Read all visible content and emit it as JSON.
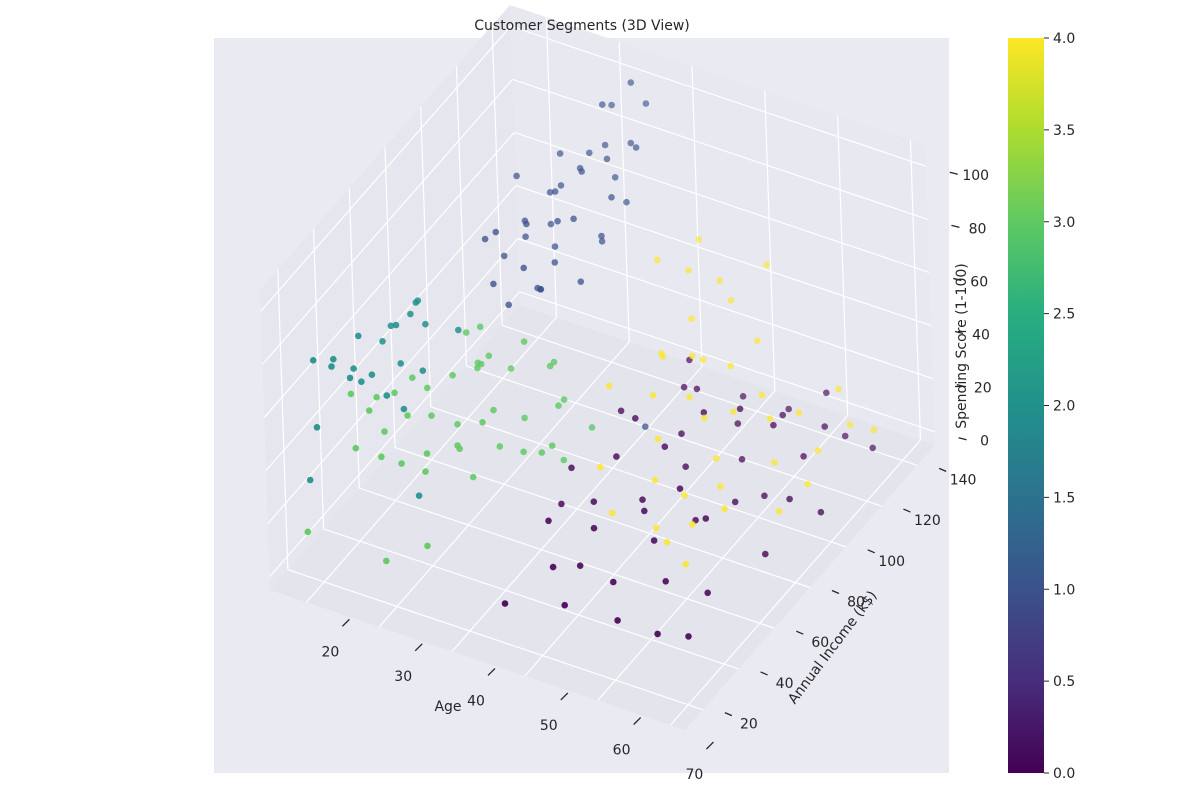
{
  "chart_data": {
    "type": "scatter",
    "projection": "3d",
    "title": "Customer Segments (3D View)",
    "xlabel": "Age",
    "ylabel": "Annual Income (k$)",
    "zlabel": "Spending Score (1-100)",
    "xlim": [
      15,
      72
    ],
    "ylim": [
      10,
      150
    ],
    "zlim": [
      -5,
      108
    ],
    "xticks": [
      20,
      30,
      40,
      50,
      60,
      70
    ],
    "yticks": [
      20,
      40,
      60,
      80,
      100,
      120,
      140
    ],
    "zticks": [
      0,
      20,
      40,
      60,
      80,
      100
    ],
    "grid": true,
    "colorbar": {
      "colormap": "viridis",
      "range": [
        0,
        4
      ],
      "ticks": [
        "0.0",
        "0.5",
        "1.0",
        "1.5",
        "2.0",
        "2.5",
        "3.0",
        "3.5",
        "4.0"
      ],
      "position": "right"
    },
    "series": [
      {
        "cluster": 0,
        "color": "#440154",
        "points": [
          [
            45,
            20,
            10
          ],
          [
            52,
            25,
            12
          ],
          [
            58,
            30,
            8
          ],
          [
            64,
            28,
            10
          ],
          [
            48,
            35,
            15
          ],
          [
            55,
            40,
            12
          ],
          [
            67,
            33,
            8
          ],
          [
            61,
            45,
            14
          ],
          [
            50,
            50,
            20
          ],
          [
            57,
            55,
            18
          ],
          [
            43,
            60,
            15
          ],
          [
            66,
            48,
            12
          ],
          [
            53,
            65,
            22
          ],
          [
            59,
            70,
            16
          ],
          [
            47,
            75,
            25
          ],
          [
            62,
            80,
            18
          ],
          [
            54,
            85,
            20
          ],
          [
            68,
            72,
            10
          ],
          [
            44,
            90,
            28
          ],
          [
            51,
            95,
            22
          ],
          [
            58,
            100,
            15
          ],
          [
            63,
            92,
            12
          ],
          [
            49,
            105,
            30
          ],
          [
            55,
            110,
            18
          ],
          [
            60,
            115,
            22
          ],
          [
            46,
            120,
            26
          ],
          [
            52,
            125,
            14
          ],
          [
            65,
            118,
            20
          ],
          [
            57,
            130,
            10
          ],
          [
            61,
            135,
            16
          ],
          [
            48,
            82,
            35
          ],
          [
            56,
            88,
            40
          ],
          [
            53,
            78,
            32
          ],
          [
            59,
            96,
            38
          ],
          [
            62,
            102,
            30
          ],
          [
            50,
            108,
            28
          ],
          [
            66,
            125,
            12
          ],
          [
            69,
            128,
            8
          ],
          [
            64,
            110,
            14
          ],
          [
            42,
            70,
            20
          ],
          [
            47,
            62,
            18
          ],
          [
            55,
            58,
            25
          ],
          [
            58,
            66,
            30
          ],
          [
            67,
            90,
            16
          ],
          [
            70,
            95,
            10
          ],
          [
            45,
            45,
            22
          ],
          [
            51,
            38,
            16
          ],
          [
            63,
            60,
            28
          ]
        ]
      },
      {
        "cluster": 1,
        "color": "#3b528b",
        "points": [
          [
            32,
            70,
            80
          ],
          [
            35,
            75,
            85
          ],
          [
            30,
            80,
            90
          ],
          [
            38,
            72,
            82
          ],
          [
            29,
            78,
            88
          ],
          [
            33,
            85,
            92
          ],
          [
            36,
            88,
            78
          ],
          [
            31,
            92,
            86
          ],
          [
            37,
            95,
            90
          ],
          [
            34,
            98,
            84
          ],
          [
            28,
            100,
            94
          ],
          [
            39,
            102,
            80
          ],
          [
            32,
            105,
            88
          ],
          [
            35,
            108,
            96
          ],
          [
            30,
            110,
            82
          ],
          [
            38,
            112,
            86
          ],
          [
            33,
            115,
            90
          ],
          [
            36,
            118,
            94
          ],
          [
            29,
            120,
            88
          ],
          [
            34,
            125,
            92
          ],
          [
            31,
            128,
            84
          ],
          [
            37,
            130,
            90
          ],
          [
            35,
            135,
            86
          ],
          [
            32,
            137,
            96
          ],
          [
            30,
            96,
            76
          ],
          [
            36,
            80,
            74
          ],
          [
            33,
            74,
            70
          ],
          [
            39,
            90,
            72
          ],
          [
            34,
            86,
            68
          ],
          [
            31,
            106,
            74
          ],
          [
            38,
            120,
            78
          ],
          [
            32,
            132,
            100
          ],
          [
            36,
            140,
            98
          ],
          [
            35,
            126,
            80
          ],
          [
            33,
            100,
            72
          ],
          [
            37,
            110,
            70
          ],
          [
            29,
            88,
            74
          ],
          [
            34,
            140,
            104
          ],
          [
            30,
            116,
            80
          ],
          [
            46,
            95,
            20
          ]
        ]
      },
      {
        "cluster": 2,
        "color": "#21908d",
        "points": [
          [
            20,
            18,
            80
          ],
          [
            22,
            20,
            78
          ],
          [
            24,
            22,
            74
          ],
          [
            21,
            25,
            76
          ],
          [
            23,
            28,
            72
          ],
          [
            25,
            30,
            70
          ],
          [
            22,
            35,
            78
          ],
          [
            26,
            40,
            82
          ],
          [
            24,
            45,
            76
          ],
          [
            27,
            38,
            70
          ],
          [
            21,
            15,
            58
          ],
          [
            23,
            32,
            64
          ],
          [
            28,
            26,
            68
          ],
          [
            26,
            48,
            80
          ],
          [
            25,
            55,
            78
          ],
          [
            29,
            42,
            66
          ],
          [
            27,
            52,
            74
          ],
          [
            30,
            58,
            70
          ],
          [
            22,
            48,
            66
          ],
          [
            24,
            60,
            74
          ],
          [
            18,
            22,
            30
          ],
          [
            31,
            30,
            30
          ],
          [
            28,
            35,
            56
          ]
        ]
      },
      {
        "cluster": 3,
        "color": "#5ec962",
        "points": [
          [
            25,
            20,
            50
          ],
          [
            28,
            22,
            48
          ],
          [
            30,
            25,
            45
          ],
          [
            27,
            28,
            52
          ],
          [
            32,
            30,
            40
          ],
          [
            29,
            33,
            56
          ],
          [
            31,
            35,
            42
          ],
          [
            26,
            38,
            58
          ],
          [
            34,
            40,
            44
          ],
          [
            30,
            42,
            50
          ],
          [
            33,
            45,
            38
          ],
          [
            28,
            48,
            54
          ],
          [
            35,
            50,
            46
          ],
          [
            31,
            52,
            40
          ],
          [
            36,
            55,
            34
          ],
          [
            29,
            58,
            52
          ],
          [
            34,
            60,
            42
          ],
          [
            32,
            62,
            56
          ],
          [
            37,
            65,
            38
          ],
          [
            30,
            68,
            50
          ],
          [
            27,
            44,
            60
          ],
          [
            33,
            56,
            60
          ],
          [
            38,
            60,
            30
          ],
          [
            35,
            44,
            30
          ],
          [
            31,
            66,
            66
          ],
          [
            36,
            70,
            62
          ],
          [
            39,
            72,
            54
          ],
          [
            40,
            75,
            40
          ],
          [
            41,
            68,
            44
          ],
          [
            38,
            78,
            50
          ],
          [
            22,
            30,
            60
          ],
          [
            26,
            24,
            62
          ],
          [
            24,
            36,
            56
          ],
          [
            40,
            62,
            30
          ],
          [
            42,
            66,
            26
          ],
          [
            28,
            70,
            58
          ],
          [
            30,
            74,
            48
          ],
          [
            32,
            78,
            42
          ],
          [
            44,
            74,
            34
          ],
          [
            42,
            60,
            36
          ],
          [
            20,
            12,
            20
          ],
          [
            30,
            15,
            16
          ],
          [
            34,
            22,
            20
          ]
        ]
      },
      {
        "cluster": 4,
        "color": "#fde725",
        "points": [
          [
            42,
            120,
            60
          ],
          [
            45,
            125,
            55
          ],
          [
            48,
            130,
            50
          ],
          [
            44,
            135,
            58
          ],
          [
            50,
            128,
            46
          ],
          [
            52,
            140,
            52
          ],
          [
            47,
            118,
            44
          ],
          [
            55,
            122,
            40
          ],
          [
            49,
            110,
            38
          ],
          [
            53,
            115,
            34
          ],
          [
            46,
            105,
            40
          ],
          [
            58,
            112,
            30
          ],
          [
            51,
            100,
            32
          ],
          [
            56,
            104,
            28
          ],
          [
            60,
            108,
            26
          ],
          [
            54,
            96,
            30
          ],
          [
            48,
            92,
            36
          ],
          [
            62,
            116,
            24
          ],
          [
            57,
            90,
            22
          ],
          [
            50,
            86,
            26
          ],
          [
            63,
            98,
            20
          ],
          [
            59,
            84,
            18
          ],
          [
            55,
            80,
            14
          ],
          [
            66,
            110,
            18
          ],
          [
            68,
            120,
            22
          ],
          [
            64,
            130,
            24
          ],
          [
            70,
            125,
            18
          ],
          [
            52,
            76,
            20
          ],
          [
            46,
            70,
            24
          ],
          [
            58,
            72,
            12
          ],
          [
            61,
            78,
            16
          ],
          [
            66,
            88,
            12
          ],
          [
            67,
            100,
            14
          ],
          [
            49,
            64,
            14
          ],
          [
            54,
            68,
            10
          ],
          [
            57,
            62,
            12
          ],
          [
            60,
            60,
            8
          ],
          [
            44,
            84,
            42
          ],
          [
            48,
            98,
            46
          ],
          [
            51,
            108,
            40
          ]
        ]
      }
    ]
  }
}
